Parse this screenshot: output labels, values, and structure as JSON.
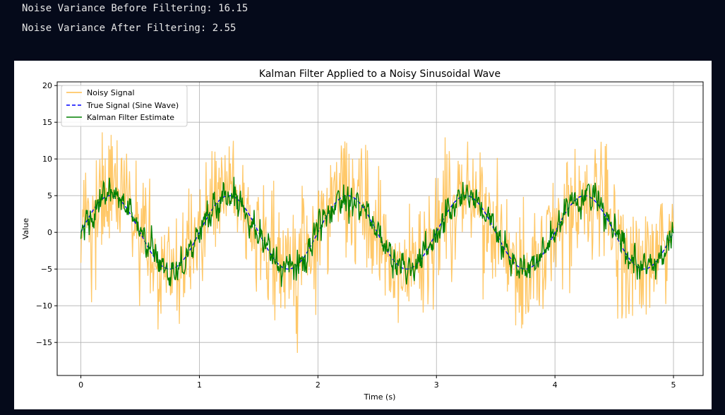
{
  "console": {
    "line1": "Noise Variance Before Filtering: 16.15",
    "line2": "Noise Variance After Filtering: 2.55"
  },
  "chart_data": {
    "type": "line",
    "title": "Kalman Filter Applied to a Noisy Sinusoidal Wave",
    "xlabel": "Time (s)",
    "ylabel": "Value",
    "xlim": [
      -0.2,
      5.25
    ],
    "ylim": [
      -19.5,
      20.5
    ],
    "xticks": [
      0,
      1,
      2,
      3,
      4,
      5
    ],
    "xtick_labels": [
      "0",
      "1",
      "2",
      "3",
      "4",
      "5"
    ],
    "yticks": [
      -15,
      -10,
      -5,
      0,
      5,
      10,
      15,
      20
    ],
    "ytick_labels": [
      "−15",
      "−10",
      "−5",
      "0",
      "5",
      "10",
      "15",
      "20"
    ],
    "grid": true,
    "legend_position": "top-left",
    "signal": {
      "amplitude": 5,
      "frequency_hz": 1,
      "t_start": 0,
      "t_end": 5,
      "noise_variance": 16.15,
      "filtered_variance": 2.55
    },
    "series": [
      {
        "name": "Noisy Signal",
        "color": "#ffbe4d",
        "style": "solid"
      },
      {
        "name": "True Signal (Sine Wave)",
        "color": "#0000ff",
        "style": "dashed"
      },
      {
        "name": "Kalman Filter Estimate",
        "color": "#008000",
        "style": "solid"
      }
    ]
  }
}
